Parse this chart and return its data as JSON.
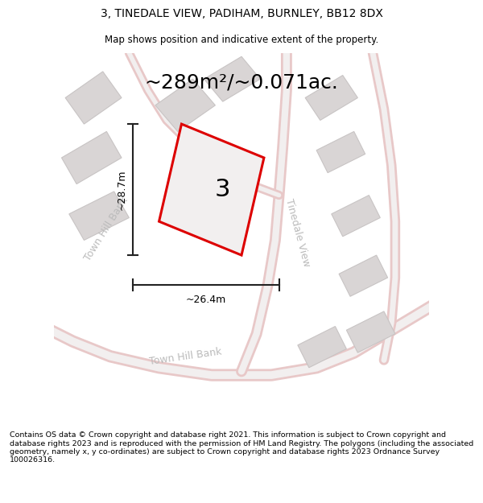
{
  "title": "3, TINEDALE VIEW, PADIHAM, BURNLEY, BB12 8DX",
  "subtitle": "Map shows position and indicative extent of the property.",
  "area_label": "~289m²/~0.071ac.",
  "plot_number": "3",
  "width_label": "~26.4m",
  "height_label": "~28.7m",
  "footer": "Contains OS data © Crown copyright and database right 2021. This information is subject to Crown copyright and database rights 2023 and is reproduced with the permission of HM Land Registry. The polygons (including the associated geometry, namely x, y co-ordinates) are subject to Crown copyright and database rights 2023 Ordnance Survey 100026316.",
  "map_bg": "#f2efef",
  "road_color": "#e8c8c8",
  "road_edge_color": "#e0b8b8",
  "building_color": "#d9d5d5",
  "building_edge": "#c8c4c4",
  "plot_color": "#dd0000",
  "plot_fill": "#f2efef",
  "dim_color": "#222222",
  "road_label_color": "#bbbbbb",
  "title_fontsize": 10,
  "subtitle_fontsize": 8.5,
  "area_fontsize": 18,
  "plot_num_fontsize": 22,
  "dim_fontsize": 9,
  "road_label_fontsize": 9,
  "footer_fontsize": 6.8
}
